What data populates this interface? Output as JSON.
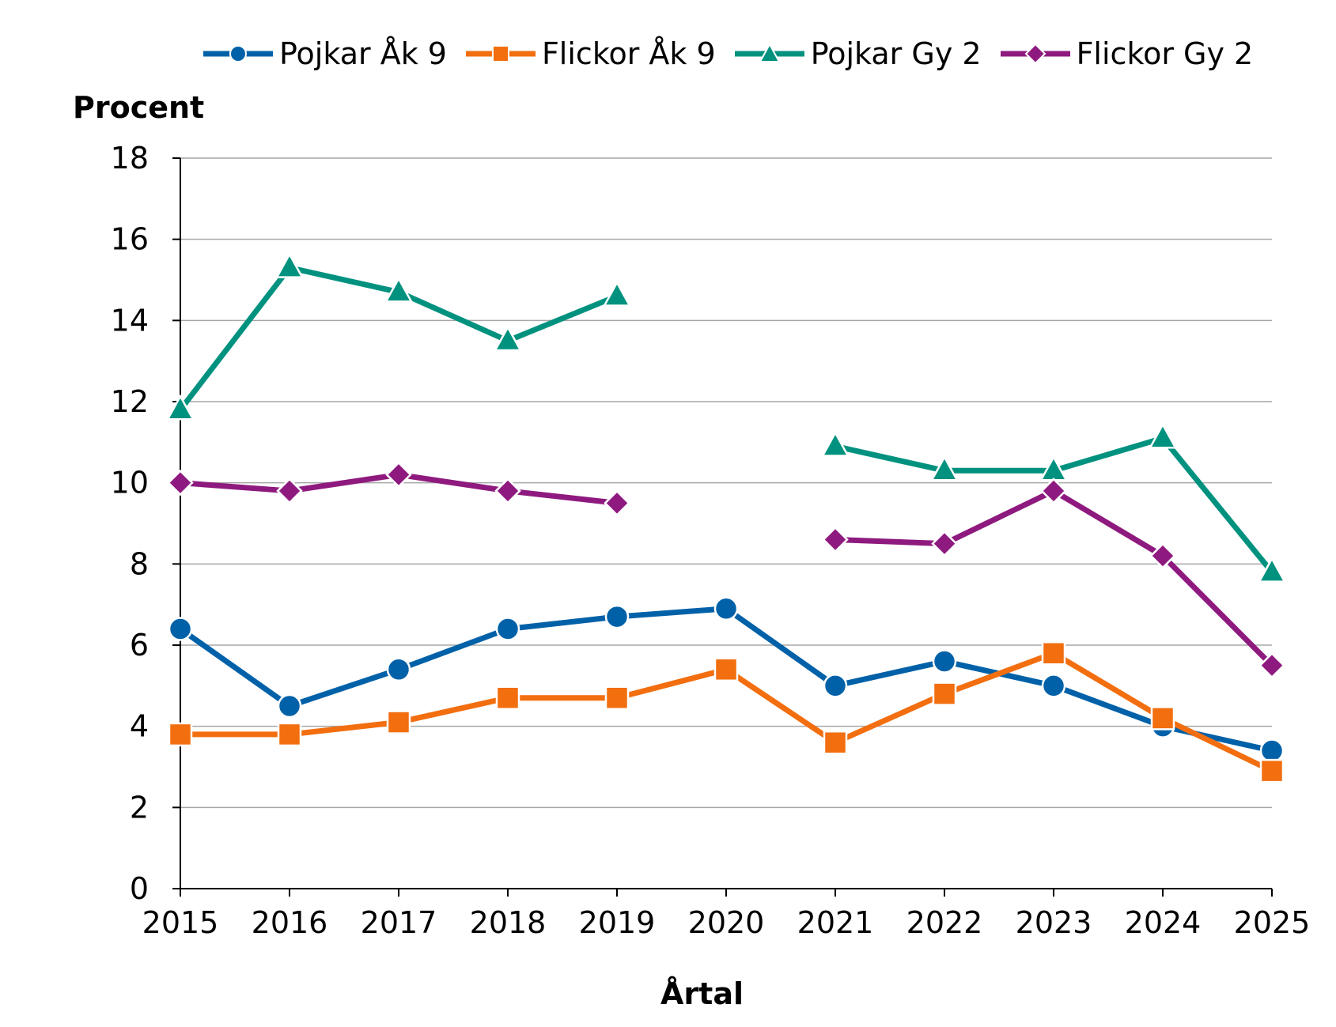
{
  "chart_data": {
    "type": "line",
    "title": "",
    "xlabel": "Årtal",
    "ylabel": "Procent",
    "ylim": [
      0,
      18
    ],
    "yticks": [
      0,
      2,
      4,
      6,
      8,
      10,
      12,
      14,
      16,
      18
    ],
    "categories": [
      "2015",
      "2016",
      "2017",
      "2018",
      "2019",
      "2020",
      "2021",
      "2022",
      "2023",
      "2024",
      "2025"
    ],
    "grid": true,
    "legend_position": "top",
    "series": [
      {
        "name": "Pojkar Åk 9",
        "color": "#0061a8",
        "marker": "circle",
        "values": [
          6.4,
          4.5,
          5.4,
          6.4,
          6.7,
          6.9,
          5.0,
          5.6,
          5.0,
          4.0,
          3.4
        ]
      },
      {
        "name": "Flickor Åk 9",
        "color": "#f26e0f",
        "marker": "square",
        "values": [
          3.8,
          3.8,
          4.1,
          4.7,
          4.7,
          5.4,
          3.6,
          4.8,
          5.8,
          4.2,
          2.9
        ]
      },
      {
        "name": "Pojkar Gy 2",
        "color": "#00927f",
        "marker": "triangle",
        "values": [
          11.8,
          15.3,
          14.7,
          13.5,
          14.6,
          null,
          10.9,
          10.3,
          10.3,
          11.1,
          7.8
        ]
      },
      {
        "name": "Flickor Gy 2",
        "color": "#8e1a7f",
        "marker": "diamond",
        "values": [
          10.0,
          9.8,
          10.2,
          9.8,
          9.5,
          null,
          8.6,
          8.5,
          9.8,
          8.2,
          5.5
        ]
      }
    ]
  }
}
